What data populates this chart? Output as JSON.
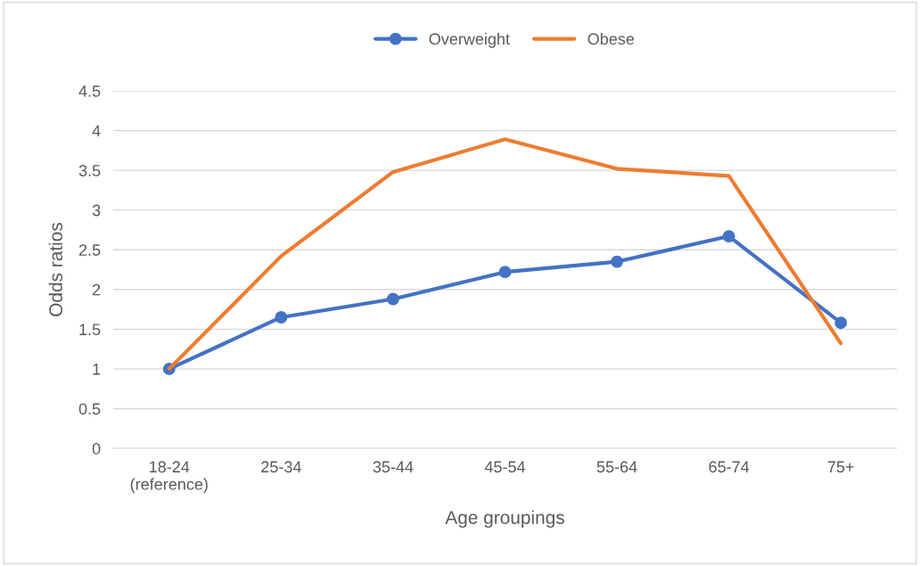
{
  "chart_data": {
    "type": "line",
    "xlabel": "Age groupings",
    "ylabel": "Odds ratios",
    "categories": [
      "18-24\n(reference)",
      "25-34",
      "35-44",
      "45-54",
      "55-64",
      "65-74",
      "75+"
    ],
    "series": [
      {
        "name": "Overweight",
        "color": "#4472c4",
        "marker": "circle",
        "values": [
          1.0,
          1.65,
          1.88,
          2.22,
          2.35,
          2.67,
          1.58
        ]
      },
      {
        "name": "Obese",
        "color": "#ed7d31",
        "marker": "none",
        "values": [
          1.0,
          2.42,
          3.48,
          3.89,
          3.52,
          3.43,
          1.32
        ]
      }
    ],
    "ylim": [
      0,
      4.5
    ],
    "yticks": [
      0,
      0.5,
      1,
      1.5,
      2,
      2.5,
      3,
      3.5,
      4,
      4.5
    ],
    "grid": "y",
    "legend": "top",
    "line_style": "solid"
  }
}
